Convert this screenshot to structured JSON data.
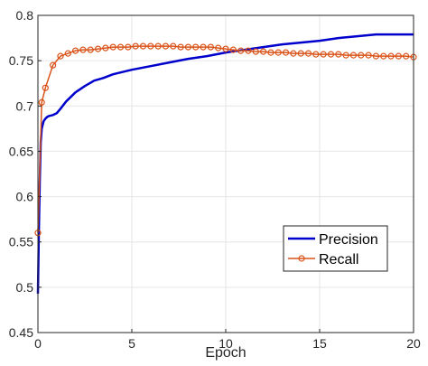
{
  "chart_data": {
    "type": "line",
    "title": "",
    "xlabel": "Epoch",
    "ylabel": "",
    "xlim": [
      0,
      20
    ],
    "ylim": [
      0.45,
      0.8
    ],
    "xticks": [
      0,
      5,
      10,
      15,
      20
    ],
    "xtick_labels": [
      "0",
      "5",
      "10",
      "15",
      "20"
    ],
    "yticks": [
      0.45,
      0.5,
      0.55,
      0.6,
      0.65,
      0.7,
      0.75,
      0.8
    ],
    "ytick_labels": [
      "0.45",
      "0.5",
      "0.55",
      "0.6",
      "0.65",
      "0.7",
      "0.75",
      "0.8"
    ],
    "grid": true,
    "legend_position": "bottom-right",
    "series": [
      {
        "name": "Precision",
        "color": "#0000cc",
        "marker": "none",
        "x": [
          0,
          0.05,
          0.1,
          0.15,
          0.2,
          0.3,
          0.4,
          0.5,
          0.6,
          0.8,
          1.0,
          1.2,
          1.5,
          2.0,
          2.5,
          3.0,
          3.5,
          4.0,
          5.0,
          6.0,
          7.0,
          8.0,
          9.0,
          10.0,
          11.0,
          12.0,
          13.0,
          14.0,
          15.0,
          16.0,
          17.0,
          18.0,
          19.0,
          20.0
        ],
        "values": [
          0.493,
          0.56,
          0.62,
          0.66,
          0.675,
          0.683,
          0.686,
          0.688,
          0.689,
          0.69,
          0.692,
          0.697,
          0.705,
          0.715,
          0.722,
          0.728,
          0.731,
          0.735,
          0.74,
          0.744,
          0.748,
          0.752,
          0.755,
          0.759,
          0.762,
          0.765,
          0.768,
          0.77,
          0.772,
          0.775,
          0.777,
          0.779,
          0.779,
          0.779
        ]
      },
      {
        "name": "Recall",
        "color": "#d95319",
        "marker": "circle",
        "x": [
          0,
          0.2,
          0.4,
          0.8,
          1.2,
          1.6,
          2.0,
          2.4,
          2.8,
          3.2,
          3.6,
          4.0,
          4.4,
          4.8,
          5.2,
          5.6,
          6.0,
          6.4,
          6.8,
          7.2,
          7.6,
          8.0,
          8.4,
          8.8,
          9.2,
          9.6,
          10.0,
          10.4,
          10.8,
          11.2,
          11.6,
          12.0,
          12.4,
          12.8,
          13.2,
          13.6,
          14.0,
          14.4,
          14.8,
          15.2,
          15.6,
          16.0,
          16.4,
          16.8,
          17.2,
          17.6,
          18.0,
          18.4,
          18.8,
          19.2,
          19.6,
          20.0
        ],
        "values": [
          0.56,
          0.704,
          0.72,
          0.745,
          0.755,
          0.758,
          0.761,
          0.762,
          0.762,
          0.763,
          0.764,
          0.765,
          0.765,
          0.765,
          0.766,
          0.766,
          0.766,
          0.766,
          0.766,
          0.766,
          0.765,
          0.765,
          0.765,
          0.765,
          0.765,
          0.764,
          0.763,
          0.762,
          0.761,
          0.761,
          0.76,
          0.76,
          0.759,
          0.759,
          0.759,
          0.758,
          0.758,
          0.758,
          0.757,
          0.757,
          0.757,
          0.757,
          0.756,
          0.756,
          0.756,
          0.756,
          0.755,
          0.755,
          0.755,
          0.755,
          0.755,
          0.754
        ]
      }
    ]
  }
}
